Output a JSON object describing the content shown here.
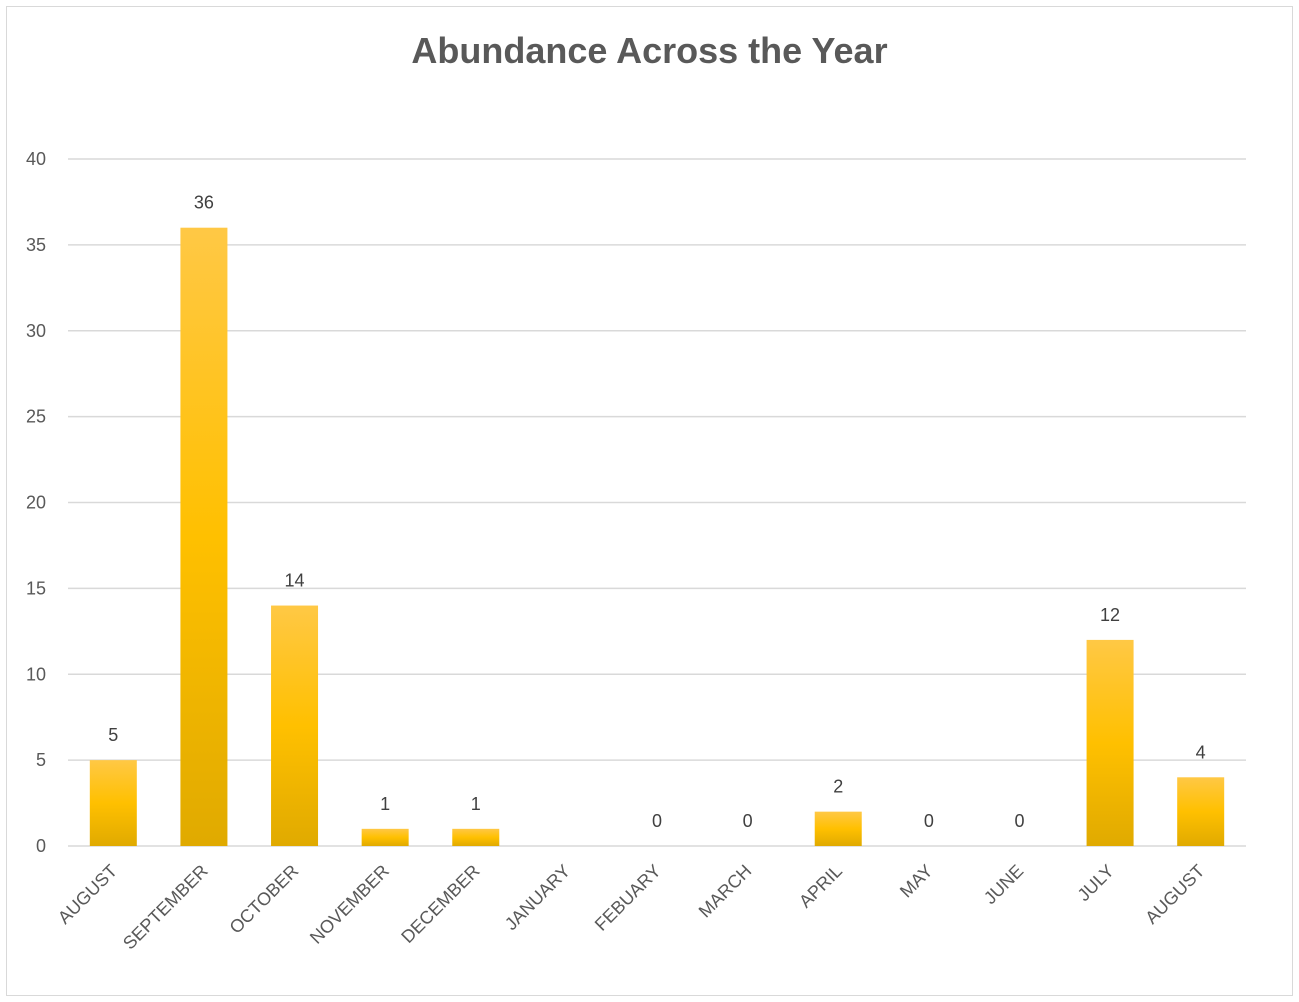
{
  "chart_data": {
    "type": "bar",
    "title": "Abundance Across the Year",
    "xlabel": "",
    "ylabel": "",
    "categories": [
      "AUGUST",
      "SEPTEMBER",
      "OCTOBER",
      "NOVEMBER",
      "DECEMBER",
      "JANUARY",
      "FEBUARY",
      "MARCH",
      "APRIL",
      "MAY",
      "JUNE",
      "JULY",
      "AUGUST"
    ],
    "values": [
      5,
      36,
      14,
      1,
      1,
      null,
      0,
      0,
      2,
      0,
      0,
      12,
      4
    ],
    "data_labels": [
      "5",
      "36",
      "14",
      "1",
      "1",
      "",
      "0",
      "0",
      "2",
      "0",
      "0",
      "12",
      "4"
    ],
    "ylim": [
      0,
      40
    ],
    "yticks": [
      0,
      5,
      10,
      15,
      20,
      25,
      30,
      35,
      40
    ],
    "grid": true,
    "legend": "none",
    "colors": {
      "bar_top": "#ffc845",
      "bar_mid": "#ffc000",
      "bar_bottom": "#e0aa00",
      "grid": "#d9d9d9",
      "text": "#595959"
    }
  }
}
